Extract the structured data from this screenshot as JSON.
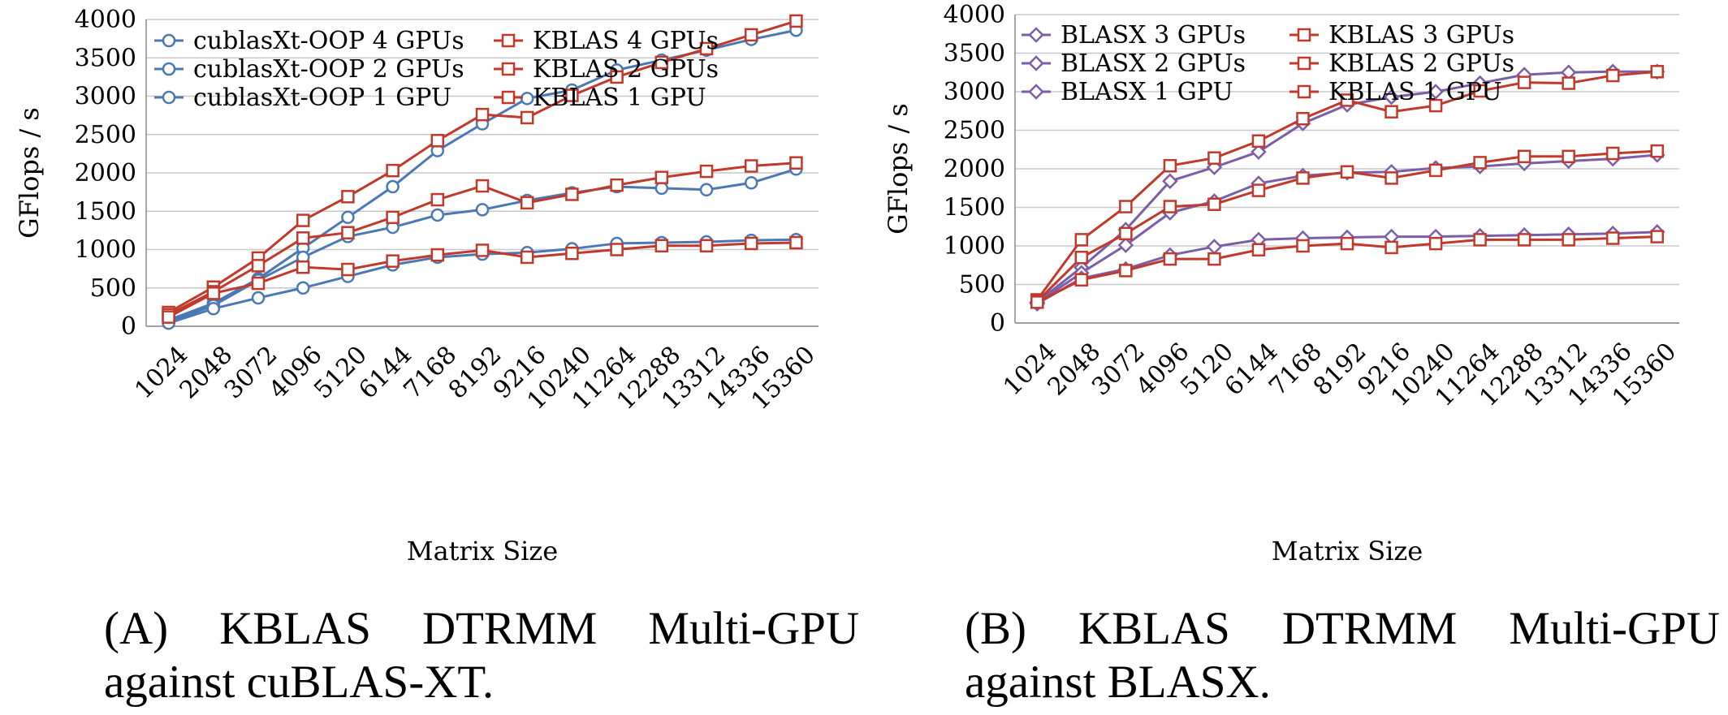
{
  "chart_data": [
    {
      "type": "line",
      "panel": "A",
      "title": "",
      "xlabel": "Matrix Size",
      "ylabel": "GFlops / s",
      "ylim": [
        0,
        4000
      ],
      "yticks": [
        0,
        500,
        1000,
        1500,
        2000,
        2500,
        3000,
        3500,
        4000
      ],
      "grid": "horizontal",
      "legend": "top-left",
      "categories": [
        "1024",
        "2048",
        "3072",
        "4096",
        "5120",
        "6144",
        "7168",
        "8192",
        "9216",
        "10240",
        "11264",
        "12288",
        "13312",
        "14336",
        "15360"
      ],
      "series": [
        {
          "name": "cublasXt-OOP 4 GPUs",
          "color": "#4a78b5",
          "marker": "circle",
          "values": [
            80,
            300,
            620,
            1020,
            1420,
            1820,
            2290,
            2640,
            2970,
            3080,
            3340,
            3470,
            3600,
            3740,
            3860
          ]
        },
        {
          "name": "cublasXt-OOP 2 GPUs",
          "color": "#4a78b5",
          "marker": "circle",
          "values": [
            60,
            270,
            600,
            900,
            1170,
            1290,
            1450,
            1520,
            1640,
            1740,
            1820,
            1800,
            1780,
            1870,
            2050
          ]
        },
        {
          "name": "cublasXt-OOP 1 GPU",
          "color": "#4a78b5",
          "marker": "circle",
          "values": [
            40,
            230,
            370,
            500,
            650,
            800,
            900,
            940,
            960,
            1010,
            1080,
            1090,
            1100,
            1120,
            1130
          ]
        },
        {
          "name": "KBLAS 4 GPUs",
          "color": "#c0392b",
          "marker": "square",
          "values": [
            180,
            510,
            890,
            1380,
            1690,
            2030,
            2420,
            2760,
            2720,
            3010,
            3250,
            3440,
            3620,
            3800,
            3980
          ]
        },
        {
          "name": "KBLAS 2 GPUs",
          "color": "#c0392b",
          "marker": "square",
          "values": [
            150,
            450,
            790,
            1150,
            1220,
            1420,
            1650,
            1830,
            1610,
            1720,
            1840,
            1940,
            2020,
            2090,
            2130
          ]
        },
        {
          "name": "KBLAS 1 GPU",
          "color": "#c0392b",
          "marker": "square",
          "values": [
            120,
            430,
            560,
            770,
            740,
            850,
            930,
            990,
            900,
            950,
            1000,
            1050,
            1050,
            1080,
            1090
          ]
        }
      ]
    },
    {
      "type": "line",
      "panel": "B",
      "title": "",
      "xlabel": "Matrix Size",
      "ylabel": "GFlops / s",
      "ylim": [
        0,
        4000
      ],
      "yticks": [
        0,
        500,
        1000,
        1500,
        2000,
        2500,
        3000,
        3500,
        4000
      ],
      "grid": "horizontal",
      "legend": "top-left",
      "categories": [
        "1024",
        "2048",
        "3072",
        "4096",
        "5120",
        "6144",
        "7168",
        "8192",
        "9216",
        "10240",
        "11264",
        "12288",
        "13312",
        "14336",
        "15360"
      ],
      "series": [
        {
          "name": "BLASX 3 GPUs",
          "color": "#7b5ea7",
          "marker": "diamond",
          "values": [
            270,
            720,
            1210,
            1840,
            2020,
            2220,
            2590,
            2830,
            2930,
            3000,
            3110,
            3220,
            3250,
            3260,
            3260
          ]
        },
        {
          "name": "BLASX 2 GPUs",
          "color": "#7b5ea7",
          "marker": "diamond",
          "values": [
            260,
            650,
            1010,
            1430,
            1580,
            1810,
            1910,
            1950,
            1960,
            2010,
            2030,
            2070,
            2100,
            2130,
            2180
          ]
        },
        {
          "name": "BLASX 1 GPU",
          "color": "#7b5ea7",
          "marker": "diamond",
          "values": [
            250,
            580,
            700,
            880,
            990,
            1080,
            1100,
            1110,
            1120,
            1120,
            1130,
            1140,
            1150,
            1160,
            1180
          ]
        },
        {
          "name": "KBLAS 3 GPUs",
          "color": "#c0392b",
          "marker": "square",
          "values": [
            300,
            1080,
            1510,
            2040,
            2140,
            2360,
            2650,
            2890,
            2740,
            2820,
            3010,
            3120,
            3110,
            3210,
            3260
          ]
        },
        {
          "name": "KBLAS 2 GPUs",
          "color": "#c0392b",
          "marker": "square",
          "values": [
            280,
            850,
            1160,
            1510,
            1540,
            1720,
            1880,
            1960,
            1880,
            1980,
            2080,
            2160,
            2160,
            2200,
            2230
          ]
        },
        {
          "name": "KBLAS 1 GPU",
          "color": "#c0392b",
          "marker": "square",
          "values": [
            270,
            560,
            680,
            830,
            830,
            950,
            1000,
            1030,
            980,
            1030,
            1080,
            1080,
            1080,
            1100,
            1120
          ]
        }
      ]
    }
  ],
  "captions": [
    {
      "prefix": "(A)",
      "words": [
        "KBLAS",
        "DTRMM",
        "Multi-GPU"
      ],
      "line2": "against cuBLAS-XT."
    },
    {
      "prefix": "(B)",
      "words": [
        "KBLAS",
        "DTRMM",
        "Multi-GPU"
      ],
      "line2": "against BLASX."
    }
  ]
}
